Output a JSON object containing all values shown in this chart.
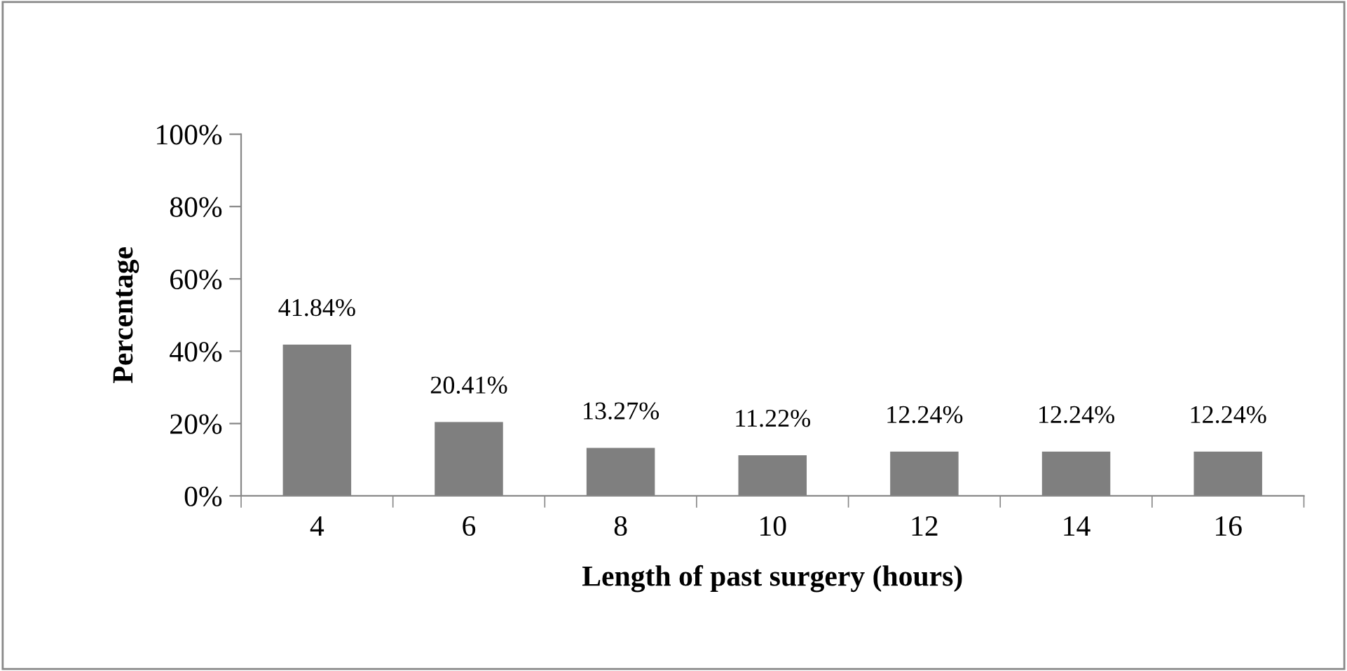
{
  "chart_data": {
    "type": "bar",
    "xlabel": "Length of past surgery (hours)",
    "ylabel": "Percentage",
    "categories": [
      "4",
      "6",
      "8",
      "10",
      "12",
      "14",
      "16"
    ],
    "values": [
      41.84,
      20.41,
      13.27,
      11.22,
      12.24,
      12.24,
      12.24
    ],
    "value_labels": [
      "41.84%",
      "20.41%",
      "13.27%",
      "11.22%",
      "12.24%",
      "12.24%",
      "12.24%"
    ],
    "color": "#7f7f7f",
    "ylim": [
      0,
      100
    ],
    "yticks": [
      {
        "value": 0,
        "label": "0%"
      },
      {
        "value": 20,
        "label": "20%"
      },
      {
        "value": 40,
        "label": "40%"
      },
      {
        "value": 60,
        "label": "60%"
      },
      {
        "value": 80,
        "label": "80%"
      },
      {
        "value": 100,
        "label": "100%"
      }
    ],
    "grid": false,
    "legend": false
  }
}
